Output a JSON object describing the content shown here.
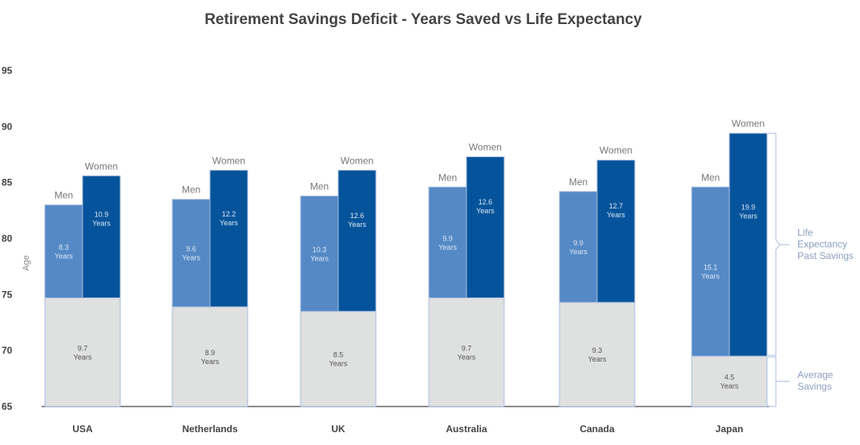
{
  "chart_data": {
    "type": "bar",
    "stacked": true,
    "title": "Retirement Savings Deficit - Years Saved vs Life Expectancy",
    "ylabel": "Age",
    "ylim": [
      65,
      95
    ],
    "yticks": [
      65,
      70,
      75,
      80,
      85,
      90,
      95
    ],
    "categories": [
      "USA",
      "Netherlands",
      "UK",
      "Australia",
      "Canada",
      "Japan"
    ],
    "savings_years": [
      9.7,
      8.9,
      8.5,
      9.7,
      9.3,
      4.5
    ],
    "men_years": [
      8.3,
      9.6,
      10.3,
      9.9,
      9.9,
      15.1
    ],
    "women_years": [
      10.9,
      12.2,
      12.6,
      12.6,
      12.7,
      19.9
    ],
    "unit_label": "Years",
    "men_label": "Men",
    "women_label": "Women",
    "bracket_labels": {
      "life_expectancy": [
        "Life",
        "Expectancy",
        "Past Savings"
      ],
      "savings": [
        "Average",
        "Savings"
      ]
    },
    "colors": {
      "men": "#5589c6",
      "women": "#05549b",
      "savings": "#dfe0e0",
      "outline": "#a9bde0",
      "text": "#444444"
    },
    "grid": false
  }
}
